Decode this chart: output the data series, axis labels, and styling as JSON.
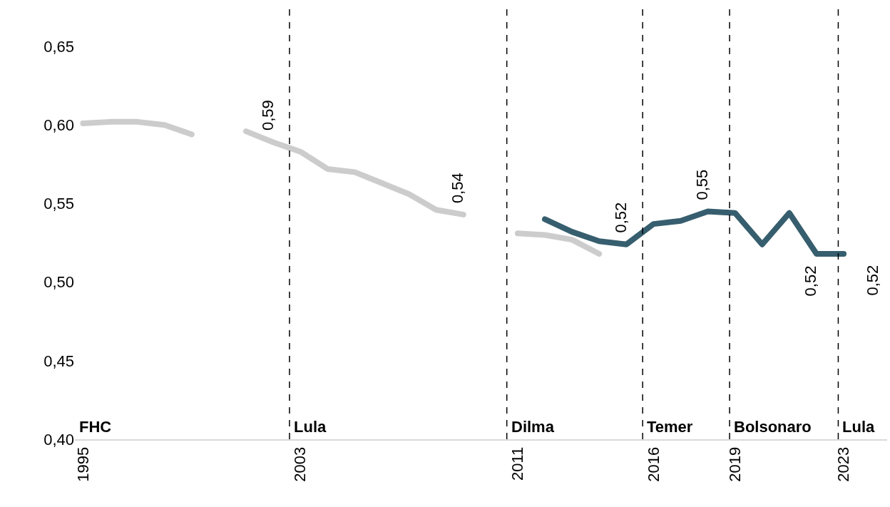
{
  "chart_data": {
    "type": "line",
    "xlim": [
      1994.7,
      2024.6
    ],
    "xticks": [
      1995,
      2003,
      2011,
      2016,
      2019,
      2023
    ],
    "ylim": [
      0.4,
      0.675
    ],
    "yticks": [
      {
        "value": 0.4,
        "label": "0,40"
      },
      {
        "value": 0.45,
        "label": "0,45"
      },
      {
        "value": 0.5,
        "label": "0,50"
      },
      {
        "value": 0.55,
        "label": "0,55"
      },
      {
        "value": 0.6,
        "label": "0,60"
      },
      {
        "value": 0.65,
        "label": "0,65"
      }
    ],
    "series": [
      {
        "color": "#cccccc",
        "x": [
          1995,
          1996,
          1997,
          1998,
          1999,
          2000,
          2001,
          2002,
          2003,
          2004,
          2005,
          2006,
          2007,
          2008,
          2009,
          2010,
          2011,
          2012,
          2013,
          2014
        ],
        "values": [
          0.601,
          0.602,
          0.602,
          0.6,
          0.594,
          null,
          0.596,
          0.589,
          0.583,
          0.572,
          0.57,
          0.563,
          0.556,
          0.546,
          0.543,
          null,
          0.531,
          0.53,
          0.527,
          0.518
        ]
      },
      {
        "color": "#365e6e",
        "x": [
          2012,
          2013,
          2014,
          2015,
          2016,
          2017,
          2018,
          2019,
          2020,
          2021,
          2022,
          2023
        ],
        "values": [
          0.54,
          0.532,
          0.526,
          0.524,
          0.537,
          0.539,
          0.545,
          0.544,
          0.524,
          0.544,
          0.518,
          0.518
        ]
      }
    ],
    "ref_lines": [
      {
        "axis": "x",
        "value": 2002.6,
        "color": "#000000",
        "line_style": "dashed",
        "label": "Lula"
      },
      {
        "axis": "x",
        "value": 2010.6,
        "color": "#000000",
        "line_style": "dashed",
        "label": "Dilma"
      },
      {
        "axis": "x",
        "value": 2015.6,
        "color": "#000000",
        "line_style": "dashed",
        "label": "Temer"
      },
      {
        "axis": "x",
        "value": 2018.8,
        "color": "#000000",
        "line_style": "dashed",
        "label": "Bolsonaro"
      },
      {
        "axis": "x",
        "value": 2022.8,
        "color": "#000000",
        "line_style": "dashed",
        "label": "Lula"
      }
    ],
    "annotations": [
      "FHC",
      {
        "text": "0,59",
        "x": 2002,
        "y": 0.589
      },
      {
        "text": "0,54",
        "x": 2009,
        "y": 0.543
      },
      {
        "text": "0,52",
        "x": 2015,
        "y": 0.524
      },
      {
        "text": "0,55",
        "x": 2018,
        "y": 0.545
      },
      {
        "text": "0,52",
        "x": 2022,
        "y": 0.518
      },
      {
        "text": "0,52",
        "x": 2023,
        "y": 0.518
      }
    ],
    "grid": false,
    "marker": "none",
    "line_style": "solid"
  }
}
